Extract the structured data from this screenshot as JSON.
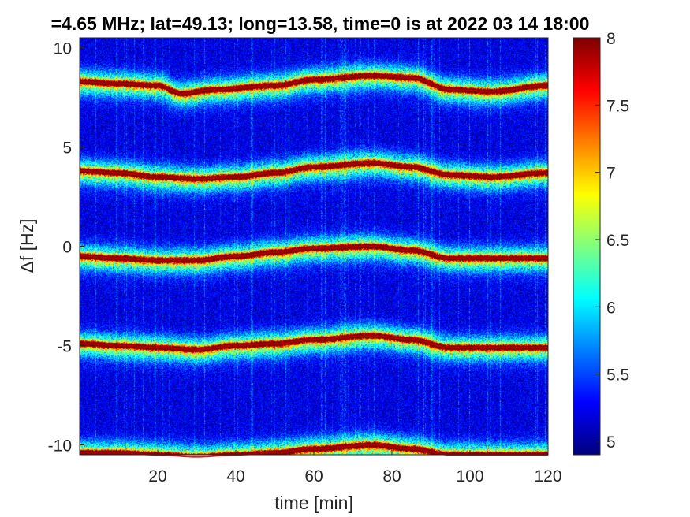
{
  "chart_data": {
    "type": "heatmap",
    "title": "=4.65 MHz;  lat=49.13; long=13.58, time=0 is at 2022 03 14 18:00",
    "xlabel": "time [min]",
    "ylabel": "Δf [Hz]",
    "xlim": [
      0,
      120
    ],
    "ylim": [
      -10.5,
      10.5
    ],
    "xticks": [
      20,
      40,
      60,
      80,
      100,
      120
    ],
    "xtick_labels": [
      "20",
      "40",
      "60",
      "80",
      "100",
      "120"
    ],
    "yticks": [
      10,
      5,
      0,
      -5,
      -10
    ],
    "ytick_labels": [
      "10",
      "5",
      "0",
      "-5",
      "-10"
    ],
    "colorbar": {
      "colormap": "jet",
      "range": [
        4.9,
        8
      ],
      "ticks": [
        8,
        7.5,
        7,
        6.5,
        6,
        5.5,
        5
      ],
      "tick_labels": [
        "8",
        "7.5",
        "7",
        "6.5",
        "6",
        "5.5",
        "5"
      ]
    },
    "background_level": 5.2,
    "peak_level": 8,
    "series": [
      {
        "offset": 8.3,
        "time": [
          0,
          10,
          20,
          26,
          35,
          50,
          60,
          75,
          85,
          95,
          105,
          120
        ],
        "df": [
          8.3,
          8.2,
          8.1,
          7.7,
          7.9,
          8.1,
          8.4,
          8.6,
          8.5,
          7.9,
          7.8,
          8.1
        ]
      },
      {
        "offset": 3.8,
        "time": [
          0,
          10,
          20,
          30,
          40,
          50,
          60,
          75,
          85,
          95,
          105,
          120
        ],
        "df": [
          3.8,
          3.7,
          3.5,
          3.4,
          3.5,
          3.7,
          4.0,
          4.2,
          4.0,
          3.6,
          3.5,
          3.7
        ]
      },
      {
        "offset": -0.5,
        "time": [
          0,
          10,
          20,
          30,
          40,
          50,
          60,
          75,
          85,
          95,
          105,
          120
        ],
        "df": [
          -0.5,
          -0.6,
          -0.7,
          -0.7,
          -0.5,
          -0.3,
          -0.1,
          0.0,
          -0.2,
          -0.6,
          -0.6,
          -0.6
        ]
      },
      {
        "offset": -5.0,
        "time": [
          0,
          10,
          20,
          30,
          40,
          50,
          60,
          75,
          85,
          95,
          105,
          120
        ],
        "df": [
          -4.9,
          -5.0,
          -5.1,
          -5.2,
          -5.0,
          -4.9,
          -4.7,
          -4.5,
          -4.7,
          -5.1,
          -5.1,
          -5.1
        ]
      },
      {
        "offset": -10.5,
        "time": [
          0,
          10,
          20,
          30,
          40,
          50,
          60,
          75,
          85,
          95,
          105,
          120
        ],
        "df": [
          -10.4,
          -10.4,
          -10.5,
          -10.6,
          -10.5,
          -10.4,
          -10.2,
          -10.0,
          -10.2,
          -10.5,
          -10.5,
          -10.5
        ]
      }
    ]
  }
}
